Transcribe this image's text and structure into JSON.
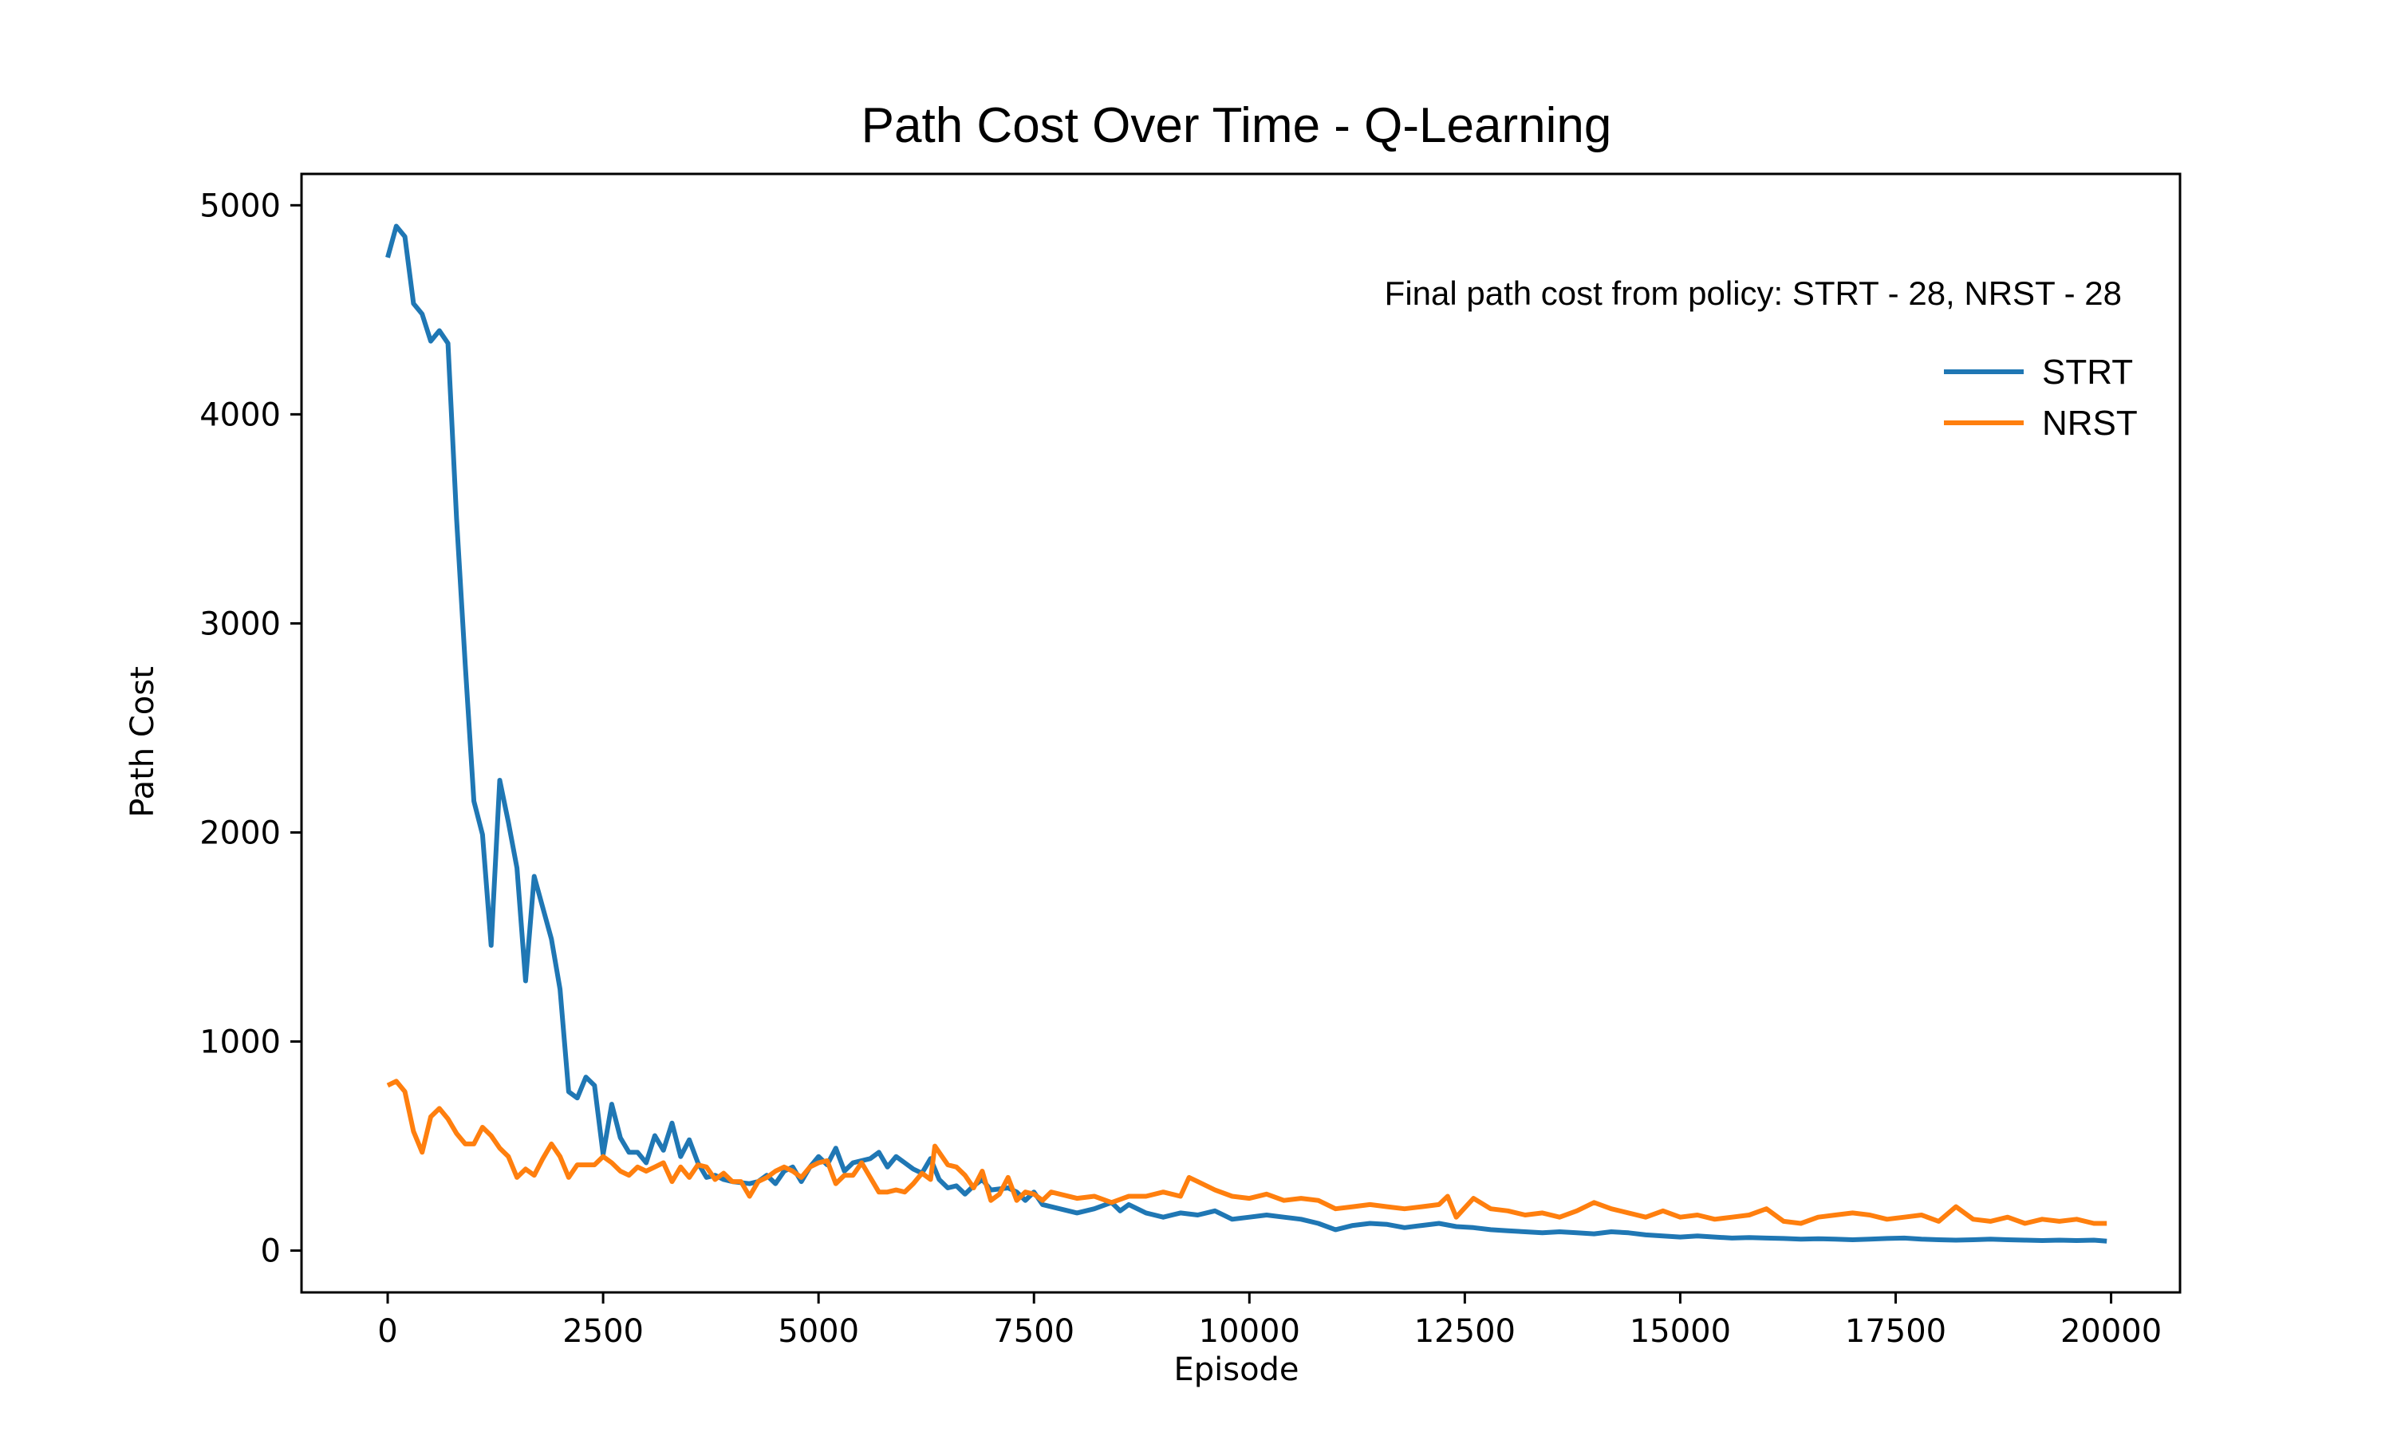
{
  "chart_data": {
    "type": "line",
    "title": "Path Cost Over Time - Q-Learning",
    "xlabel": "Episode",
    "ylabel": "Path Cost",
    "xlim": [
      -1000,
      20800
    ],
    "ylim": [
      -200,
      5150
    ],
    "xticks": [
      0,
      2500,
      5000,
      7500,
      10000,
      12500,
      15000,
      17500,
      20000
    ],
    "yticks": [
      0,
      1000,
      2000,
      3000,
      4000,
      5000
    ],
    "grid": false,
    "legend_position": "top-right",
    "annotation": "Final path cost from policy: STRT - 28, NRST - 28",
    "series": [
      {
        "name": "STRT",
        "color": "#1f77b4",
        "points": [
          [
            0,
            4750
          ],
          [
            100,
            4900
          ],
          [
            200,
            4850
          ],
          [
            300,
            4530
          ],
          [
            400,
            4480
          ],
          [
            500,
            4350
          ],
          [
            600,
            4400
          ],
          [
            700,
            4340
          ],
          [
            800,
            3500
          ],
          [
            900,
            2800
          ],
          [
            1000,
            2150
          ],
          [
            1100,
            1990
          ],
          [
            1200,
            1460
          ],
          [
            1300,
            2250
          ],
          [
            1400,
            2050
          ],
          [
            1500,
            1830
          ],
          [
            1600,
            1290
          ],
          [
            1700,
            1790
          ],
          [
            1800,
            1640
          ],
          [
            1900,
            1490
          ],
          [
            2000,
            1250
          ],
          [
            2100,
            760
          ],
          [
            2200,
            730
          ],
          [
            2300,
            830
          ],
          [
            2400,
            790
          ],
          [
            2500,
            460
          ],
          [
            2600,
            700
          ],
          [
            2700,
            540
          ],
          [
            2800,
            470
          ],
          [
            2900,
            470
          ],
          [
            3000,
            420
          ],
          [
            3100,
            550
          ],
          [
            3200,
            480
          ],
          [
            3300,
            610
          ],
          [
            3400,
            450
          ],
          [
            3500,
            530
          ],
          [
            3600,
            420
          ],
          [
            3700,
            350
          ],
          [
            3800,
            360
          ],
          [
            3900,
            340
          ],
          [
            4000,
            330
          ],
          [
            4200,
            320
          ],
          [
            4300,
            330
          ],
          [
            4400,
            360
          ],
          [
            4500,
            320
          ],
          [
            4600,
            380
          ],
          [
            4700,
            400
          ],
          [
            4800,
            330
          ],
          [
            4900,
            400
          ],
          [
            5000,
            450
          ],
          [
            5100,
            410
          ],
          [
            5200,
            490
          ],
          [
            5300,
            380
          ],
          [
            5400,
            420
          ],
          [
            5500,
            430
          ],
          [
            5600,
            440
          ],
          [
            5700,
            470
          ],
          [
            5800,
            400
          ],
          [
            5900,
            450
          ],
          [
            6000,
            420
          ],
          [
            6100,
            390
          ],
          [
            6200,
            370
          ],
          [
            6300,
            440
          ],
          [
            6400,
            340
          ],
          [
            6500,
            300
          ],
          [
            6600,
            310
          ],
          [
            6700,
            270
          ],
          [
            6800,
            310
          ],
          [
            6900,
            340
          ],
          [
            7000,
            290
          ],
          [
            7200,
            300
          ],
          [
            7300,
            280
          ],
          [
            7400,
            240
          ],
          [
            7500,
            280
          ],
          [
            7600,
            220
          ],
          [
            7800,
            200
          ],
          [
            8000,
            180
          ],
          [
            8200,
            200
          ],
          [
            8400,
            230
          ],
          [
            8500,
            190
          ],
          [
            8600,
            220
          ],
          [
            8800,
            180
          ],
          [
            9000,
            160
          ],
          [
            9200,
            180
          ],
          [
            9400,
            170
          ],
          [
            9600,
            190
          ],
          [
            9800,
            150
          ],
          [
            10000,
            160
          ],
          [
            10200,
            170
          ],
          [
            10400,
            160
          ],
          [
            10600,
            150
          ],
          [
            10800,
            130
          ],
          [
            11000,
            100
          ],
          [
            11200,
            120
          ],
          [
            11400,
            130
          ],
          [
            11600,
            125
          ],
          [
            11800,
            110
          ],
          [
            12000,
            120
          ],
          [
            12200,
            130
          ],
          [
            12400,
            115
          ],
          [
            12600,
            110
          ],
          [
            12800,
            100
          ],
          [
            13000,
            95
          ],
          [
            13200,
            90
          ],
          [
            13400,
            85
          ],
          [
            13600,
            90
          ],
          [
            13800,
            85
          ],
          [
            14000,
            80
          ],
          [
            14200,
            90
          ],
          [
            14400,
            85
          ],
          [
            14600,
            75
          ],
          [
            14800,
            70
          ],
          [
            15000,
            65
          ],
          [
            15200,
            70
          ],
          [
            15400,
            65
          ],
          [
            15600,
            60
          ],
          [
            15800,
            62
          ],
          [
            16000,
            60
          ],
          [
            16200,
            58
          ],
          [
            16400,
            55
          ],
          [
            16600,
            57
          ],
          [
            16800,
            55
          ],
          [
            17000,
            52
          ],
          [
            17200,
            55
          ],
          [
            17400,
            58
          ],
          [
            17600,
            60
          ],
          [
            17800,
            55
          ],
          [
            18000,
            52
          ],
          [
            18200,
            50
          ],
          [
            18400,
            52
          ],
          [
            18600,
            55
          ],
          [
            18800,
            52
          ],
          [
            19000,
            50
          ],
          [
            19200,
            48
          ],
          [
            19400,
            50
          ],
          [
            19600,
            48
          ],
          [
            19800,
            50
          ],
          [
            19950,
            45
          ]
        ]
      },
      {
        "name": "NRST",
        "color": "#ff7f0e",
        "points": [
          [
            0,
            790
          ],
          [
            100,
            810
          ],
          [
            200,
            760
          ],
          [
            300,
            570
          ],
          [
            400,
            470
          ],
          [
            500,
            640
          ],
          [
            600,
            680
          ],
          [
            700,
            630
          ],
          [
            800,
            560
          ],
          [
            900,
            510
          ],
          [
            1000,
            510
          ],
          [
            1100,
            590
          ],
          [
            1200,
            550
          ],
          [
            1300,
            490
          ],
          [
            1400,
            450
          ],
          [
            1500,
            350
          ],
          [
            1600,
            390
          ],
          [
            1700,
            360
          ],
          [
            1800,
            440
          ],
          [
            1900,
            510
          ],
          [
            2000,
            450
          ],
          [
            2100,
            350
          ],
          [
            2200,
            410
          ],
          [
            2300,
            410
          ],
          [
            2400,
            410
          ],
          [
            2500,
            450
          ],
          [
            2600,
            420
          ],
          [
            2700,
            380
          ],
          [
            2800,
            360
          ],
          [
            2900,
            400
          ],
          [
            3000,
            380
          ],
          [
            3100,
            400
          ],
          [
            3200,
            420
          ],
          [
            3300,
            330
          ],
          [
            3400,
            400
          ],
          [
            3500,
            350
          ],
          [
            3600,
            410
          ],
          [
            3700,
            400
          ],
          [
            3800,
            340
          ],
          [
            3900,
            370
          ],
          [
            4000,
            330
          ],
          [
            4100,
            330
          ],
          [
            4200,
            260
          ],
          [
            4300,
            330
          ],
          [
            4400,
            350
          ],
          [
            4500,
            380
          ],
          [
            4600,
            400
          ],
          [
            4700,
            380
          ],
          [
            4800,
            350
          ],
          [
            4900,
            400
          ],
          [
            5000,
            420
          ],
          [
            5100,
            430
          ],
          [
            5200,
            320
          ],
          [
            5300,
            360
          ],
          [
            5400,
            360
          ],
          [
            5500,
            420
          ],
          [
            5600,
            350
          ],
          [
            5700,
            280
          ],
          [
            5800,
            280
          ],
          [
            5900,
            290
          ],
          [
            6000,
            280
          ],
          [
            6100,
            320
          ],
          [
            6200,
            370
          ],
          [
            6300,
            340
          ],
          [
            6350,
            500
          ],
          [
            6400,
            470
          ],
          [
            6500,
            410
          ],
          [
            6600,
            400
          ],
          [
            6700,
            360
          ],
          [
            6800,
            300
          ],
          [
            6900,
            380
          ],
          [
            7000,
            240
          ],
          [
            7100,
            270
          ],
          [
            7200,
            350
          ],
          [
            7300,
            240
          ],
          [
            7400,
            280
          ],
          [
            7500,
            270
          ],
          [
            7600,
            240
          ],
          [
            7700,
            280
          ],
          [
            7800,
            270
          ],
          [
            8000,
            250
          ],
          [
            8200,
            260
          ],
          [
            8400,
            230
          ],
          [
            8600,
            260
          ],
          [
            8800,
            260
          ],
          [
            9000,
            280
          ],
          [
            9200,
            260
          ],
          [
            9300,
            350
          ],
          [
            9400,
            330
          ],
          [
            9600,
            290
          ],
          [
            9800,
            260
          ],
          [
            10000,
            250
          ],
          [
            10200,
            270
          ],
          [
            10400,
            240
          ],
          [
            10600,
            250
          ],
          [
            10800,
            240
          ],
          [
            11000,
            200
          ],
          [
            11200,
            210
          ],
          [
            11400,
            220
          ],
          [
            11600,
            210
          ],
          [
            11800,
            200
          ],
          [
            12000,
            210
          ],
          [
            12200,
            220
          ],
          [
            12300,
            260
          ],
          [
            12400,
            160
          ],
          [
            12600,
            250
          ],
          [
            12800,
            200
          ],
          [
            13000,
            190
          ],
          [
            13200,
            170
          ],
          [
            13400,
            180
          ],
          [
            13600,
            160
          ],
          [
            13800,
            190
          ],
          [
            14000,
            230
          ],
          [
            14200,
            200
          ],
          [
            14400,
            180
          ],
          [
            14600,
            160
          ],
          [
            14800,
            190
          ],
          [
            15000,
            160
          ],
          [
            15200,
            170
          ],
          [
            15400,
            150
          ],
          [
            15600,
            160
          ],
          [
            15800,
            170
          ],
          [
            16000,
            200
          ],
          [
            16200,
            140
          ],
          [
            16400,
            130
          ],
          [
            16600,
            160
          ],
          [
            16800,
            170
          ],
          [
            17000,
            180
          ],
          [
            17200,
            170
          ],
          [
            17400,
            150
          ],
          [
            17600,
            160
          ],
          [
            17800,
            170
          ],
          [
            18000,
            140
          ],
          [
            18200,
            210
          ],
          [
            18400,
            150
          ],
          [
            18600,
            140
          ],
          [
            18800,
            160
          ],
          [
            19000,
            130
          ],
          [
            19200,
            150
          ],
          [
            19400,
            140
          ],
          [
            19600,
            150
          ],
          [
            19800,
            130
          ],
          [
            19950,
            130
          ]
        ]
      }
    ]
  }
}
